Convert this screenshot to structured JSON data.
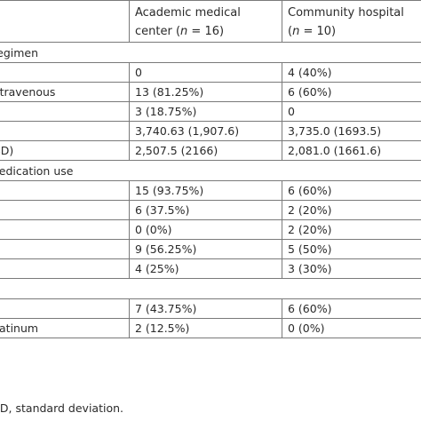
{
  "header": {
    "col1_line1": "Academic medical",
    "col1_line2_prefix": "center (",
    "col1_n": "n",
    "col1_line2_suffix": " = 16)",
    "col2_line1": "Community hospital",
    "col2_line2_prefix": "(",
    "col2_n": "n",
    "col2_line2_suffix": " = 10)"
  },
  "rows": [
    {
      "type": "section",
      "label": "Regimen"
    },
    {
      "type": "data",
      "label": "",
      "academic": "0",
      "community": "4 (40%)"
    },
    {
      "type": "data",
      "label": "Intravenous",
      "academic": "13 (81.25%)",
      "community": "6 (60%)"
    },
    {
      "type": "data",
      "label": "",
      "academic": "3 (18.75%)",
      "community": "0"
    },
    {
      "type": "data",
      "label": "",
      "academic": "3,740.63 (1,907.6)",
      "community": "3,735.0 (1693.5)"
    },
    {
      "type": "data",
      "label": "(SD)",
      "academic": "2,507.5 (2166)",
      "community": "2,081.0 (1661.6)"
    },
    {
      "type": "section",
      "label": "Medication use"
    },
    {
      "type": "data",
      "label": "",
      "academic": "15 (93.75%)",
      "community": "6 (60%)"
    },
    {
      "type": "data",
      "label": "",
      "academic": "6 (37.5%)",
      "community": "2 (20%)"
    },
    {
      "type": "data",
      "label": "",
      "academic": "0 (0%)",
      "community": "2 (20%)"
    },
    {
      "type": "data",
      "label": "",
      "academic": "9 (56.25%)",
      "community": "5 (50%)"
    },
    {
      "type": "data",
      "label": "",
      "academic": "4 (25%)",
      "community": "3 (30%)"
    },
    {
      "type": "section",
      "label": ""
    },
    {
      "type": "data",
      "label": "",
      "academic": "7 (43.75%)",
      "community": "6 (60%)"
    },
    {
      "type": "data",
      "label": "Platinum",
      "academic": "2 (12.5%)",
      "community": "0 (0%)"
    }
  ],
  "footnote": "SD, standard deviation."
}
